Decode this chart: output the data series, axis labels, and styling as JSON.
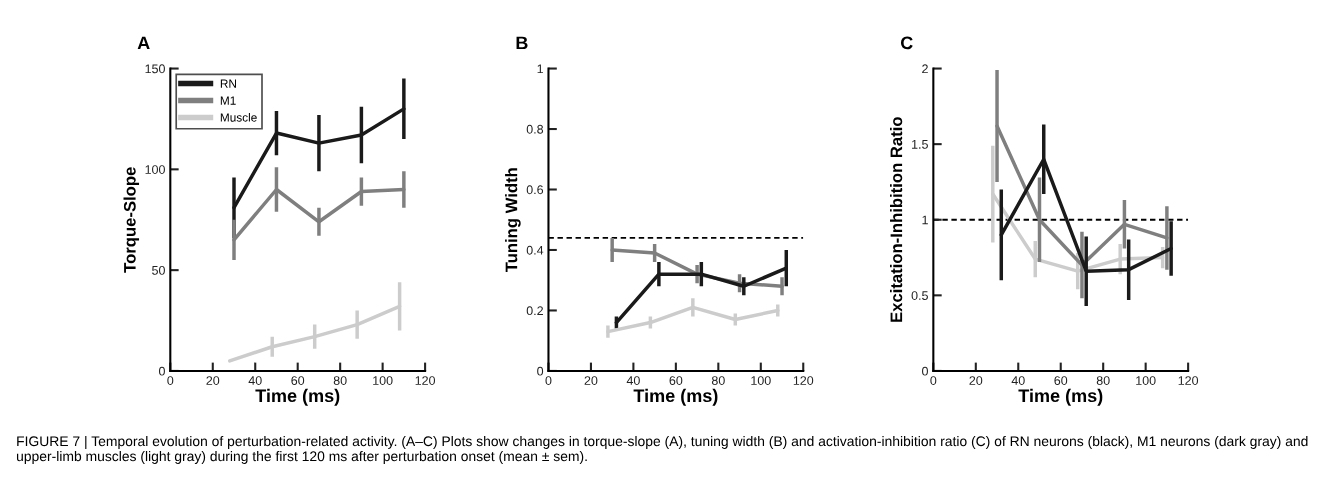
{
  "chart_data": [
    {
      "type": "line",
      "title": "A",
      "xlabel": "Time (ms)",
      "ylabel": "Torque-Slope",
      "xlim": [
        0,
        120
      ],
      "xticks": [
        0,
        20,
        40,
        60,
        80,
        100,
        120
      ],
      "ylim": [
        0,
        150
      ],
      "yticks": [
        0,
        50,
        100,
        150
      ],
      "legend": "top left",
      "grid": false,
      "series": [
        {
          "name": "RN",
          "color": "#1a1a1a",
          "x": [
            30,
            50,
            70,
            90,
            110
          ],
          "values": [
            81,
            118,
            113,
            117,
            130
          ],
          "errors": [
            15,
            11,
            14,
            14,
            15
          ]
        },
        {
          "name": "M1",
          "color": "#7f7f7f",
          "x": [
            30,
            50,
            70,
            90,
            110
          ],
          "values": [
            65,
            90,
            74,
            89,
            90
          ],
          "errors": [
            10,
            11,
            7,
            7,
            9
          ]
        },
        {
          "name": "Muscle",
          "color": "#cccccc",
          "x": [
            28,
            48,
            68,
            88,
            108
          ],
          "values": [
            5,
            12,
            17,
            23,
            32
          ],
          "errors": [
            null,
            5,
            6,
            7,
            12
          ]
        }
      ],
      "annotations": [
        "FIGURE 7 | Temporal evolution of perturbation-related activity. (A–C) Plots show changes in torque-slope (A), tuning width (B) and activation-inhibition ratio (C) of RN neurons (black), M1 neurons (dark gray) and upper-limb muscles (light gray) during the first 120 ms after perturbation onset (mean ± sem)."
      ]
    },
    {
      "type": "line",
      "title": "B",
      "xlabel": "Time (ms)",
      "ylabel": "Tuning Width",
      "xlim": [
        0,
        120
      ],
      "xticks": [
        0,
        20,
        40,
        60,
        80,
        100,
        120
      ],
      "ylim": [
        0,
        1
      ],
      "yticks": [
        0,
        0.2,
        0.4,
        0.6,
        0.8,
        1
      ],
      "grid": false,
      "ref_lines": [
        {
          "axis": "y",
          "value": 0.44,
          "color": "#000000",
          "line_style": "dashed"
        }
      ],
      "series": [
        {
          "color": "#7f7f7f",
          "x": [
            30,
            50,
            70,
            90,
            110
          ],
          "values": [
            0.4,
            0.39,
            0.32,
            0.29,
            0.28
          ],
          "errors": [
            0.04,
            0.03,
            0.03,
            0.03,
            0.03
          ]
        },
        {
          "color": "#1a1a1a",
          "x": [
            32,
            52,
            72,
            92,
            112
          ],
          "values": [
            0.16,
            0.32,
            0.32,
            0.28,
            0.34
          ],
          "errors": [
            0.02,
            0.04,
            0.04,
            0.03,
            0.06
          ]
        },
        {
          "color": "#cccccc",
          "x": [
            28,
            48,
            68,
            88,
            108
          ],
          "values": [
            0.13,
            0.16,
            0.21,
            0.17,
            0.2
          ],
          "errors": [
            0.02,
            0.02,
            0.03,
            0.02,
            0.02
          ]
        }
      ]
    },
    {
      "type": "line",
      "title": "C",
      "xlabel": "Time (ms)",
      "ylabel": "Excitation-Inhibition Ratio",
      "xlim": [
        0,
        120
      ],
      "xticks": [
        0,
        20,
        40,
        60,
        80,
        100,
        120
      ],
      "ylim": [
        0,
        2
      ],
      "yticks": [
        0,
        0.5,
        1,
        1.5,
        2
      ],
      "grid": false,
      "ref_lines": [
        {
          "axis": "y",
          "value": 1,
          "color": "#000000",
          "line_style": "dashed"
        }
      ],
      "series": [
        {
          "color": "#cccccc",
          "x": [
            28,
            48,
            68,
            88,
            108
          ],
          "values": [
            1.17,
            0.74,
            0.66,
            0.74,
            0.75
          ],
          "errors": [
            0.32,
            0.12,
            0.12,
            0.1,
            0.07
          ]
        },
        {
          "color": "#7f7f7f",
          "x": [
            30,
            50,
            70,
            90,
            110
          ],
          "values": [
            1.62,
            1.0,
            0.7,
            0.97,
            0.88
          ],
          "errors": [
            0.37,
            0.28,
            0.22,
            0.16,
            0.21
          ]
        },
        {
          "color": "#1a1a1a",
          "x": [
            32,
            52,
            72,
            92,
            112
          ],
          "values": [
            0.9,
            1.4,
            0.66,
            0.67,
            0.81
          ],
          "errors": [
            0.3,
            0.23,
            0.23,
            0.2,
            0.18
          ]
        }
      ]
    }
  ]
}
